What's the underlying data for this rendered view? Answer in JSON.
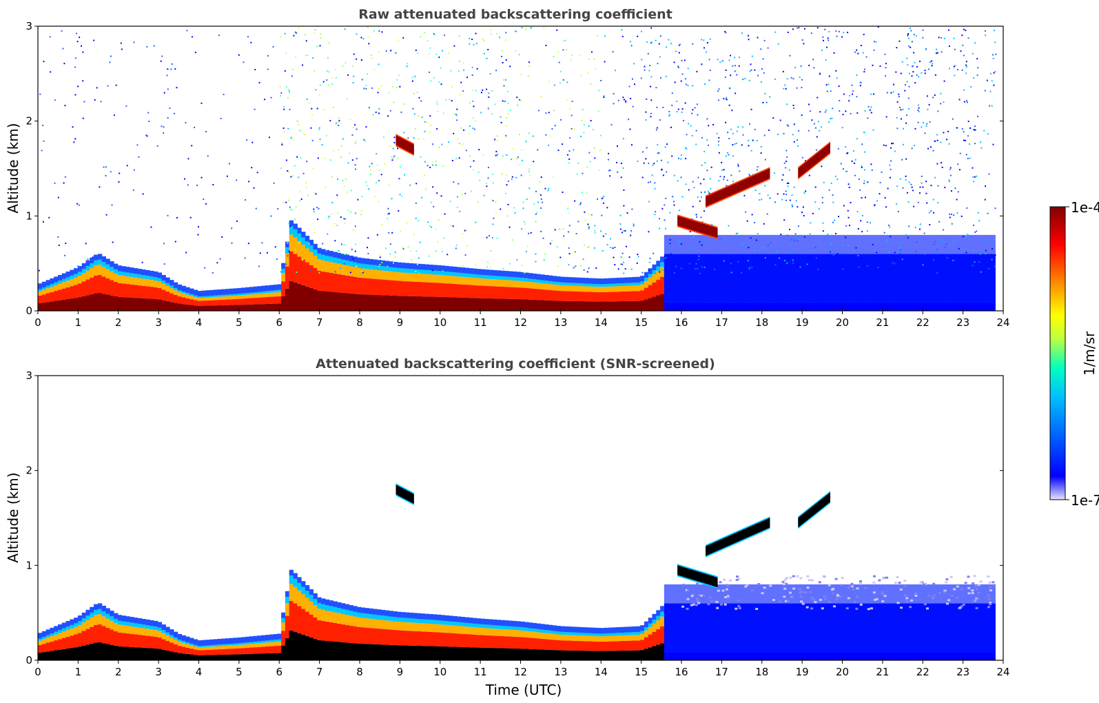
{
  "chart_data": [
    {
      "type": "heatmap",
      "title": "Raw attenuated backscattering coefficient",
      "xlabel": "",
      "ylabel": "Altitude (km)",
      "xlim": [
        0,
        24
      ],
      "ylim": [
        0,
        3
      ],
      "x_ticks": [
        "0",
        "1",
        "2",
        "3",
        "4",
        "5",
        "6",
        "7",
        "8",
        "9",
        "10",
        "11",
        "12",
        "13",
        "14",
        "15",
        "16",
        "17",
        "18",
        "19",
        "20",
        "21",
        "22",
        "23",
        "24"
      ],
      "y_ticks": [
        "0",
        "1",
        "2",
        "3"
      ],
      "colorscale": "jet",
      "data_end_time": 23.8,
      "features": {
        "boundary_layer_top_km": [
          [
            0,
            0.22
          ],
          [
            1,
            0.4
          ],
          [
            1.5,
            0.55
          ],
          [
            2,
            0.42
          ],
          [
            3,
            0.35
          ],
          [
            3.5,
            0.22
          ],
          [
            4,
            0.15
          ],
          [
            5,
            0.18
          ],
          [
            6,
            0.22
          ],
          [
            6.3,
            0.9
          ],
          [
            7,
            0.6
          ],
          [
            8,
            0.5
          ],
          [
            9,
            0.45
          ],
          [
            10,
            0.42
          ],
          [
            11,
            0.38
          ],
          [
            12,
            0.35
          ],
          [
            13,
            0.3
          ],
          [
            14,
            0.28
          ],
          [
            15,
            0.3
          ],
          [
            15.5,
            0.5
          ],
          [
            16,
            0.8
          ],
          [
            16.5,
            0.75
          ]
        ],
        "elevated_layers": [
          {
            "t_start": 15.9,
            "t_end": 16.9,
            "alt_start_km": 0.95,
            "alt_end_km": 0.82
          },
          {
            "t_start": 16.6,
            "t_end": 18.2,
            "alt_start_km": 1.15,
            "alt_end_km": 1.45
          },
          {
            "t_start": 18.9,
            "t_end": 19.7,
            "alt_start_km": 1.45,
            "alt_end_km": 1.72
          },
          {
            "t_start": 8.9,
            "t_end": 9.35,
            "alt_start_km": 1.8,
            "alt_end_km": 1.7
          }
        ],
        "noise_level": "high"
      }
    },
    {
      "type": "heatmap",
      "title": "Attenuated backscattering coefficient (SNR-screened)",
      "xlabel": "Time (UTC)",
      "ylabel": "Altitude (km)",
      "xlim": [
        0,
        24
      ],
      "ylim": [
        0,
        3
      ],
      "x_ticks": [
        "0",
        "1",
        "2",
        "3",
        "4",
        "5",
        "6",
        "7",
        "8",
        "9",
        "10",
        "11",
        "12",
        "13",
        "14",
        "15",
        "16",
        "17",
        "18",
        "19",
        "20",
        "21",
        "22",
        "23",
        "24"
      ],
      "y_ticks": [
        "0",
        "1",
        "2",
        "3"
      ],
      "colorscale": "jet",
      "data_end_time": 23.8,
      "features": {
        "boundary_layer_top_km": [
          [
            0,
            0.22
          ],
          [
            1,
            0.4
          ],
          [
            1.5,
            0.55
          ],
          [
            2,
            0.42
          ],
          [
            3,
            0.35
          ],
          [
            3.5,
            0.22
          ],
          [
            4,
            0.15
          ],
          [
            5,
            0.18
          ],
          [
            6,
            0.22
          ],
          [
            6.3,
            0.9
          ],
          [
            7,
            0.6
          ],
          [
            8,
            0.5
          ],
          [
            9,
            0.45
          ],
          [
            10,
            0.42
          ],
          [
            11,
            0.38
          ],
          [
            12,
            0.35
          ],
          [
            13,
            0.3
          ],
          [
            14,
            0.28
          ],
          [
            15,
            0.3
          ],
          [
            15.5,
            0.5
          ],
          [
            16,
            0.8
          ],
          [
            16.5,
            0.75
          ]
        ],
        "elevated_layers": [
          {
            "t_start": 15.9,
            "t_end": 16.9,
            "alt_start_km": 0.95,
            "alt_end_km": 0.82
          },
          {
            "t_start": 16.6,
            "t_end": 18.2,
            "alt_start_km": 1.15,
            "alt_end_km": 1.45
          },
          {
            "t_start": 18.9,
            "t_end": 19.7,
            "alt_start_km": 1.45,
            "alt_end_km": 1.72
          },
          {
            "t_start": 8.9,
            "t_end": 9.35,
            "alt_start_km": 1.8,
            "alt_end_km": 1.7
          }
        ],
        "noise_level": "screened"
      }
    }
  ],
  "colorbar": {
    "label": "1/m/sr",
    "max_label": "1e-4",
    "min_label": "1e-7",
    "scale": "log",
    "range": [
      1e-07,
      0.0001
    ],
    "colors": [
      "#e6e6fa",
      "#0000ff",
      "#00bfff",
      "#00ffc0",
      "#c0ff40",
      "#ffff00",
      "#ff8000",
      "#ff0000",
      "#800000"
    ]
  }
}
